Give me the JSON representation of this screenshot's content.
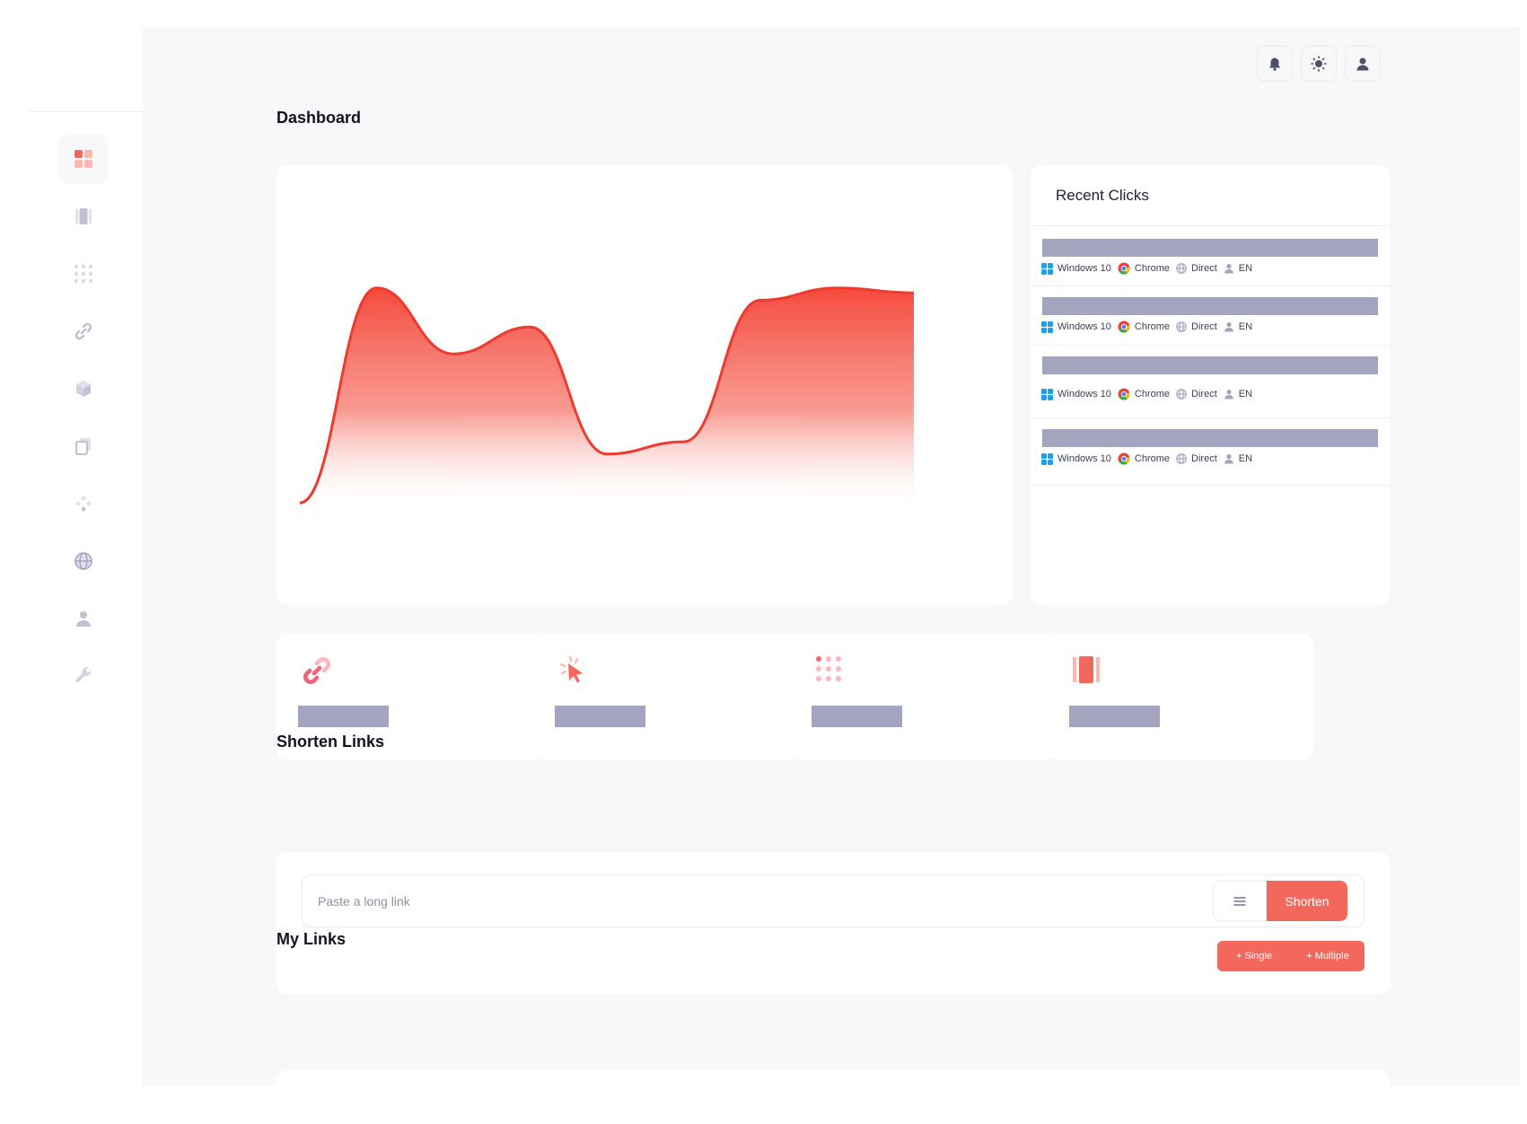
{
  "nav": {
    "items": [
      {
        "name": "dashboard-icon",
        "active": true
      },
      {
        "name": "links-icon"
      },
      {
        "name": "grid-icon"
      },
      {
        "name": "link-icon"
      },
      {
        "name": "cube-icon"
      },
      {
        "name": "copy-icon"
      },
      {
        "name": "integrations-icon"
      },
      {
        "name": "globe-icon"
      },
      {
        "name": "user-icon"
      },
      {
        "name": "wrench-icon"
      }
    ]
  },
  "topbar": {
    "icons": [
      "bell-icon",
      "sun-icon",
      "user-icon"
    ]
  },
  "dashboard": {
    "title": "Dashboard"
  },
  "chart_data": {
    "type": "area",
    "x": [
      0,
      1,
      2,
      3,
      4,
      5,
      6,
      7,
      8
    ],
    "values": [
      4,
      92,
      65,
      76,
      24,
      29,
      87,
      92,
      90
    ],
    "ylim": [
      0,
      100
    ],
    "title": "",
    "xlabel": "",
    "ylabel": "",
    "grid": false,
    "colors": {
      "line": "#ef3a2d",
      "fill_top": "#f54a3d",
      "fill_bottom": "#ffffff"
    }
  },
  "recent_clicks": {
    "title": "Recent Clicks",
    "rows": [
      {
        "os": "Windows 10",
        "browser": "Chrome",
        "referrer": "Direct",
        "language": "EN"
      },
      {
        "os": "Windows 10",
        "browser": "Chrome",
        "referrer": "Direct",
        "language": "EN"
      },
      {
        "os": "Windows 10",
        "browser": "Chrome",
        "referrer": "Direct",
        "language": "EN"
      },
      {
        "os": "Windows 10",
        "browser": "Chrome",
        "referrer": "Direct",
        "language": "EN"
      }
    ]
  },
  "stats": {
    "cards": [
      {
        "icon": "link-icon"
      },
      {
        "icon": "cursor-click-icon"
      },
      {
        "icon": "dots-grid-icon"
      },
      {
        "icon": "columns-icon"
      }
    ]
  },
  "shorten": {
    "title": "Shorten Links",
    "placeholder": "Paste a long link",
    "button_label": "Shorten",
    "single_label": "+ Single",
    "multiple_label": "+ Multiple"
  },
  "my_links": {
    "title": "My Links"
  },
  "colors": {
    "accent": "#f4675c",
    "placeholder_bar": "#a3a5c0",
    "background": "#f8f8fa"
  }
}
